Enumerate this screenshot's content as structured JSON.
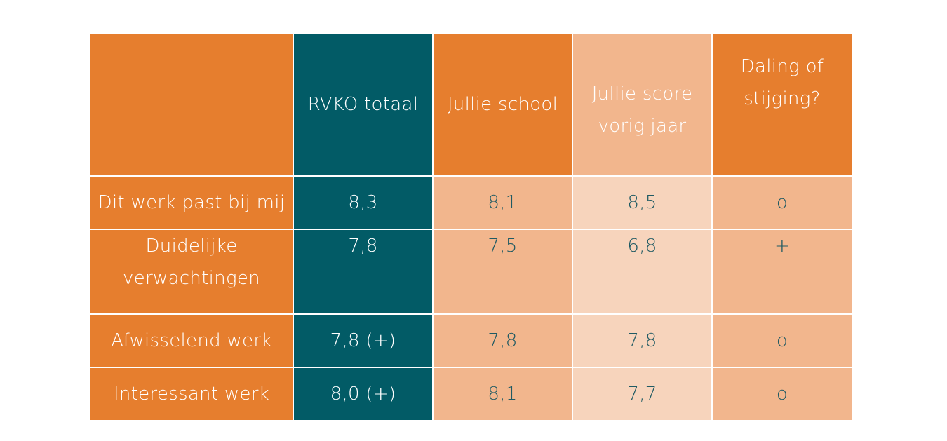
{
  "chart_data": {
    "type": "table",
    "columns": [
      "",
      "RVKO totaal",
      "Jullie school",
      "Jullie score vorig jaar",
      "Daling of stijging?"
    ],
    "rows": [
      {
        "label": "Dit werk past bij mij",
        "rvko": "8,3",
        "school": "8,1",
        "previous": "8,5",
        "trend": "o"
      },
      {
        "label": "Duidelijke verwachtingen",
        "rvko": "7,8",
        "school": "7,5",
        "previous": "6,8",
        "trend": "+"
      },
      {
        "label": "Afwisselend werk",
        "rvko": "7,8 (+)",
        "school": "7,8",
        "previous": "7,8",
        "trend": "o"
      },
      {
        "label": "Interessant werk",
        "rvko": "8,0 (+)",
        "school": "8,1",
        "previous": "7,7",
        "trend": "o"
      }
    ]
  },
  "colors": {
    "orange": "#e67e2e",
    "teal": "#025b66",
    "light_orange": "#f2b68d",
    "pale_orange": "#f7d4bc",
    "text_dark": "#1f5a63"
  }
}
